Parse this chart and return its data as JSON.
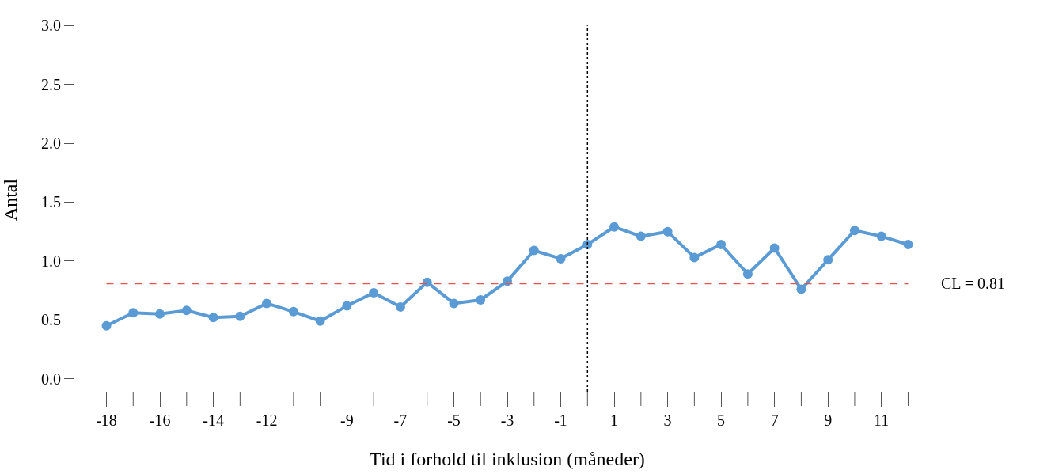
{
  "chart_data": {
    "type": "line",
    "xlabel": "Tid i forhold til inklusion (måneder)",
    "ylabel": "Antal",
    "x": [
      -18,
      -17,
      -16,
      -15,
      -14,
      -13,
      -12,
      -11,
      -10,
      -9,
      -8,
      -7,
      -6,
      -5,
      -4,
      -3,
      -2,
      -1,
      0,
      1,
      2,
      3,
      4,
      5,
      6,
      7,
      8,
      9,
      10,
      11,
      12
    ],
    "series": [
      {
        "color": "#5b9bd5",
        "values": [
          0.45,
          0.56,
          0.55,
          0.58,
          0.52,
          0.53,
          0.64,
          0.57,
          0.49,
          0.62,
          0.73,
          0.61,
          0.82,
          0.64,
          0.67,
          0.83,
          1.09,
          1.02,
          1.14,
          1.29,
          1.21,
          1.25,
          1.03,
          1.14,
          0.89,
          1.11,
          0.76,
          1.01,
          1.26,
          1.21,
          1.14
        ]
      }
    ],
    "xlim": [
      -19.2,
      13.2
    ],
    "xticks": [
      -18,
      -16,
      -14,
      -12,
      -9,
      -7,
      -5,
      -3,
      -1,
      1,
      3,
      5,
      7,
      9,
      11
    ],
    "ylim": [
      -0.11,
      3.15
    ],
    "yticks": [
      {
        "value": 0,
        "label": "0.0"
      },
      {
        "value": 0.5,
        "label": "0.5"
      },
      {
        "value": 1,
        "label": "1.0"
      },
      {
        "value": 1.5,
        "label": "1.5"
      },
      {
        "value": 2,
        "label": "2.0"
      },
      {
        "value": 2.5,
        "label": "2.5"
      },
      {
        "value": 3,
        "label": "3.0"
      }
    ],
    "ref_lines": [
      {
        "axis": "y",
        "value": 0.81,
        "label": "CL = 0.81",
        "color": "#e8534f",
        "line_style": "dashed"
      },
      {
        "axis": "x",
        "value": 0,
        "color": "#000000",
        "line_style": "dotted"
      }
    ],
    "marker": "circle",
    "line_style": "solid"
  }
}
